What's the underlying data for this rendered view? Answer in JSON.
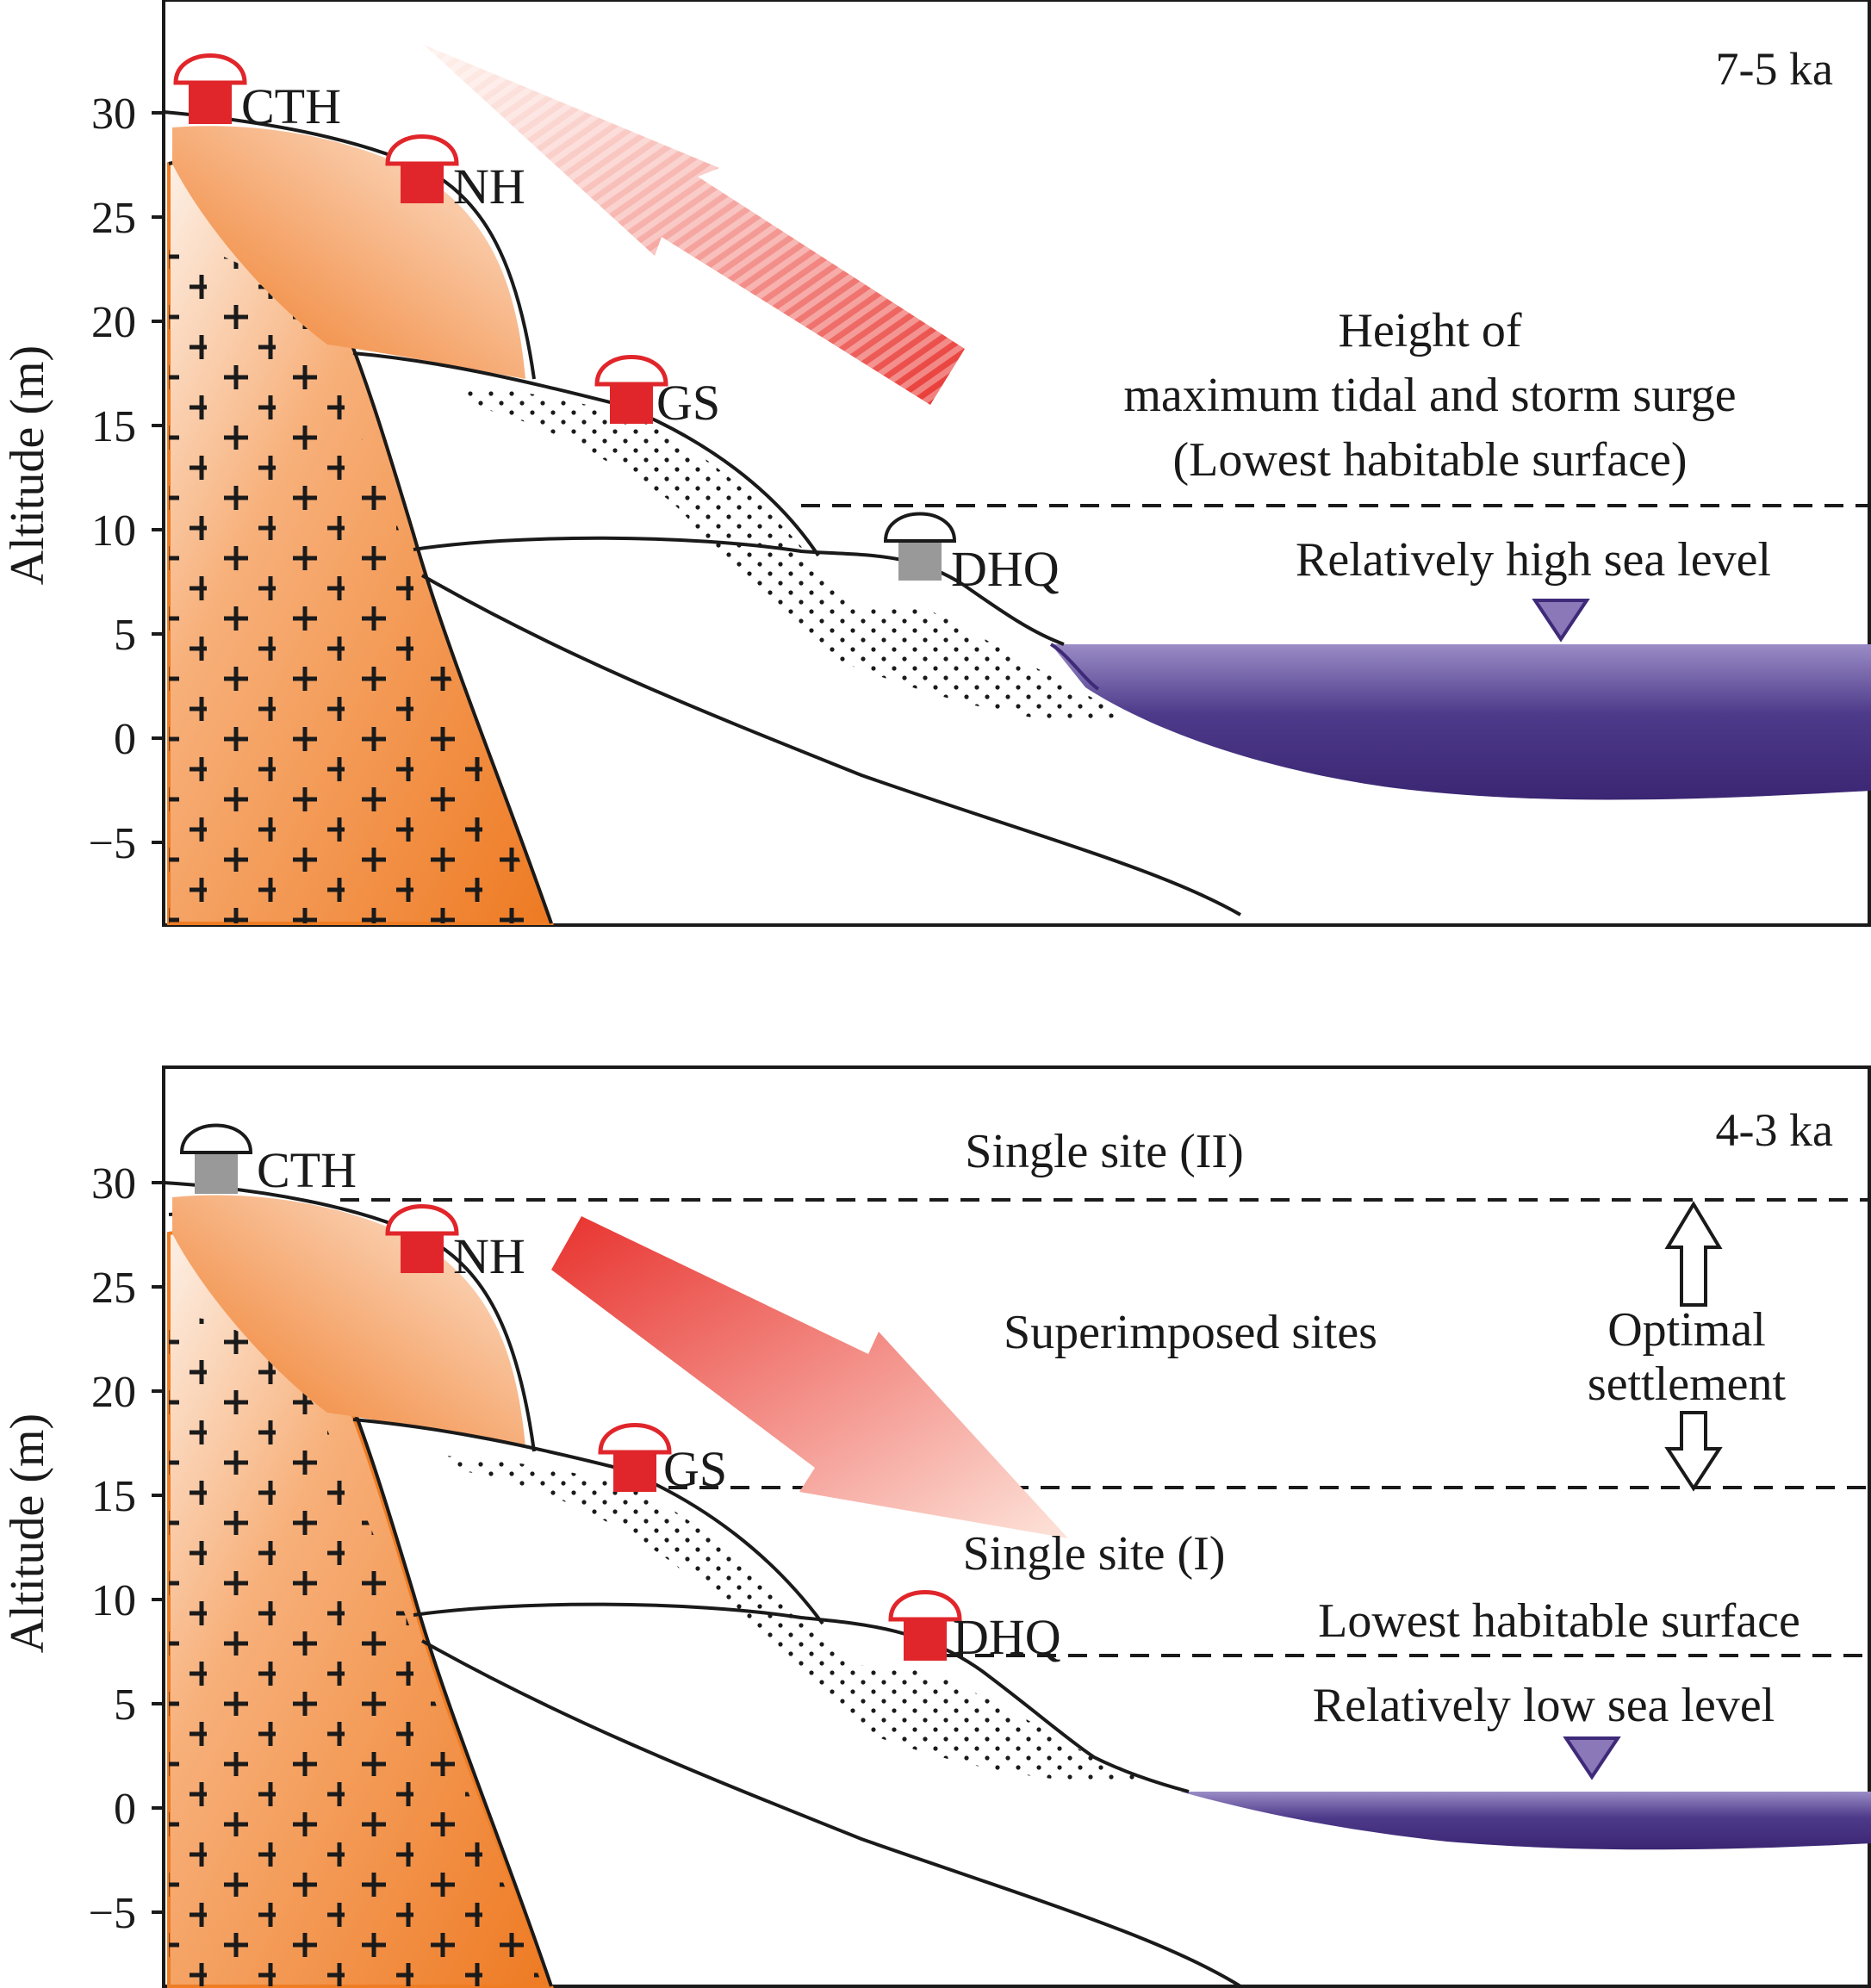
{
  "panels": [
    {
      "id": "top",
      "period": "7-5 ka",
      "y_axis_label": "Altitude (m)",
      "y_ticks": [
        "30",
        "25",
        "20",
        "15",
        "10",
        "5",
        "0",
        "−5"
      ],
      "sites": [
        {
          "name": "CTH",
          "status": "occupied",
          "color": "#e0262b"
        },
        {
          "name": "NH",
          "status": "occupied",
          "color": "#e0262b"
        },
        {
          "name": "GS",
          "status": "occupied",
          "color": "#e0262b"
        },
        {
          "name": "DHQ",
          "status": "unoccupied",
          "color": "#999999"
        }
      ],
      "annotations": {
        "surge_line1": "Height of",
        "surge_line2": "maximum tidal and storm surge",
        "surge_line3": "(Lowest habitable surface)",
        "sea_level": "Relatively high sea level"
      },
      "arrow_direction": "upslope"
    },
    {
      "id": "bottom",
      "period": "4-3 ka",
      "y_axis_label": "Altitude (m)",
      "y_ticks": [
        "30",
        "25",
        "20",
        "15",
        "10",
        "5",
        "0",
        "−5"
      ],
      "sites": [
        {
          "name": "CTH",
          "status": "unoccupied",
          "color": "#999999"
        },
        {
          "name": "NH",
          "status": "occupied",
          "color": "#e0262b"
        },
        {
          "name": "GS",
          "status": "occupied",
          "color": "#e0262b"
        },
        {
          "name": "DHQ",
          "status": "occupied",
          "color": "#e0262b"
        }
      ],
      "annotations": {
        "single_site_2": "Single site (II)",
        "superimposed": "Superimposed sites",
        "optimal_line1": "Optimal",
        "optimal_line2": "settlement",
        "single_site_1": "Single site (I)",
        "lowest_surface": "Lowest habitable surface",
        "sea_level": "Relatively low sea level"
      },
      "arrow_direction": "downslope"
    }
  ],
  "colors": {
    "bedrock_dark": "#ef7d24",
    "bedrock_light": "#fde8d8",
    "sea_top": "#8a78b8",
    "sea_bottom": "#3e2a78",
    "site_occupied": "#e0262b",
    "site_unoccupied": "#999999"
  }
}
